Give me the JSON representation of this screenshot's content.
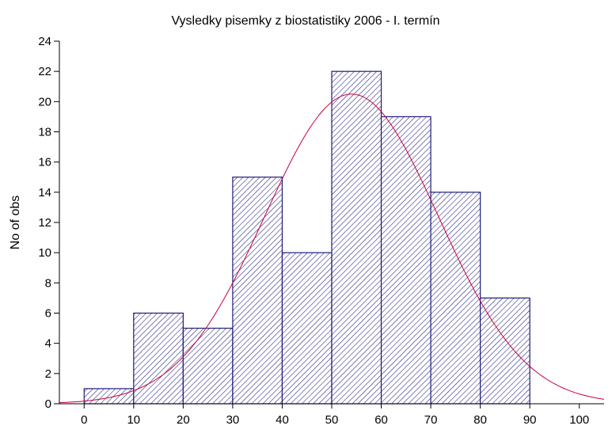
{
  "chart_data": {
    "type": "bar",
    "title": "Vysledky pisemky z biostatistiky 2006 - I. termín",
    "xlabel": "",
    "ylabel": "No of obs",
    "bins": [
      {
        "from": 0,
        "to": 10,
        "count": 1
      },
      {
        "from": 10,
        "to": 20,
        "count": 6
      },
      {
        "from": 20,
        "to": 30,
        "count": 5
      },
      {
        "from": 30,
        "to": 40,
        "count": 15
      },
      {
        "from": 40,
        "to": 50,
        "count": 10
      },
      {
        "from": 50,
        "to": 60,
        "count": 22
      },
      {
        "from": 60,
        "to": 70,
        "count": 19
      },
      {
        "from": 70,
        "to": 80,
        "count": 14
      },
      {
        "from": 80,
        "to": 90,
        "count": 7
      }
    ],
    "xlim": [
      -5,
      105
    ],
    "ylim": [
      0,
      24
    ],
    "xticks": [
      0,
      10,
      20,
      30,
      40,
      50,
      60,
      70,
      80,
      90,
      100
    ],
    "yticks": [
      0,
      2,
      4,
      6,
      8,
      10,
      12,
      14,
      16,
      18,
      20,
      22,
      24
    ],
    "fit_curve": {
      "type": "normal",
      "peak_x": 54,
      "peak_y": 20.5,
      "sd": 17.5
    },
    "grid": false,
    "colors": {
      "bar_edge": "#1c1c7a",
      "hatch": "#1c1c7a",
      "fit_curve": "#cc0033"
    }
  }
}
